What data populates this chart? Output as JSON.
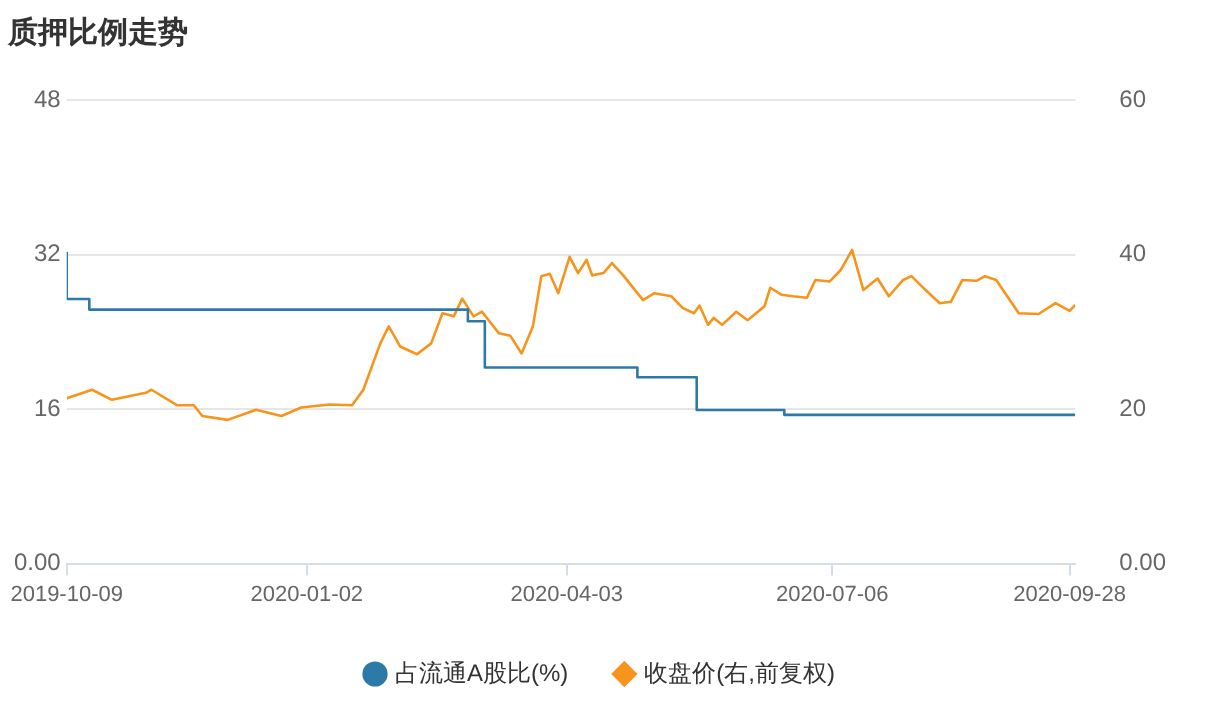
{
  "chart_data": {
    "type": "line",
    "title": "质押比例走势",
    "xlim": [
      "2019-10-09",
      "2020-09-30"
    ],
    "xticks": [
      "2019-10-09",
      "2020-01-02",
      "2020-04-03",
      "2020-07-06",
      "2020-09-28"
    ],
    "ylim": [
      0,
      48
    ],
    "yticks": [
      {
        "value": 0,
        "label": "0.00"
      },
      16,
      32,
      48
    ],
    "y2lim": [
      0,
      60
    ],
    "y2ticks": [
      {
        "value": 0,
        "label": "0.00"
      },
      20,
      40,
      60
    ],
    "grid": "y",
    "legend": "bottom",
    "line_style": "solid",
    "series": [
      {
        "name": "占流通A股比(%)",
        "color": "#2d79a8",
        "type": "step",
        "x": [
          "2019-10-09",
          "2019-10-17",
          "2020-02-28",
          "2020-03-05",
          "2020-04-28",
          "2020-05-19",
          "2020-06-19",
          "2020-08-19",
          "2020-09-30"
        ],
        "values": [
          32.3,
          27.4,
          26.3,
          25.1,
          20.3,
          19.3,
          15.9,
          15.4,
          15.4
        ]
      },
      {
        "name": "收盘价(右,前复权)",
        "color": "#f7941d",
        "type": "line",
        "axis": "y2",
        "x": [
          "2019-10-09",
          "2019-10-18",
          "2019-10-25",
          "2019-11-06",
          "2019-11-08",
          "2019-11-17",
          "2019-11-23",
          "2019-11-26",
          "2019-12-05",
          "2019-12-15",
          "2019-12-24",
          "2019-12-31",
          "2020-01-10",
          "2020-01-18",
          "2020-01-22",
          "2020-01-28",
          "2020-01-31",
          "2020-02-04",
          "2020-02-10",
          "2020-02-15",
          "2020-02-19",
          "2020-02-23",
          "2020-02-26",
          "2020-03-01",
          "2020-03-04",
          "2020-03-10",
          "2020-03-14",
          "2020-03-18",
          "2020-03-22",
          "2020-03-25",
          "2020-03-28",
          "2020-03-31",
          "2020-04-04",
          "2020-04-07",
          "2020-04-10",
          "2020-04-12",
          "2020-04-16",
          "2020-04-19",
          "2020-04-23",
          "2020-04-30",
          "2020-05-04",
          "2020-05-10",
          "2020-05-14",
          "2020-05-18",
          "2020-05-20",
          "2020-05-23",
          "2020-05-25",
          "2020-05-28",
          "2020-06-02",
          "2020-06-06",
          "2020-06-12",
          "2020-06-14",
          "2020-06-18",
          "2020-06-22",
          "2020-06-27",
          "2020-06-30",
          "2020-07-05",
          "2020-07-09",
          "2020-07-13",
          "2020-07-17",
          "2020-07-22",
          "2020-07-26",
          "2020-07-31",
          "2020-08-03",
          "2020-08-08",
          "2020-08-13",
          "2020-08-17",
          "2020-08-21",
          "2020-08-26",
          "2020-08-29",
          "2020-09-02",
          "2020-09-10",
          "2020-09-17",
          "2020-09-23",
          "2020-09-28",
          "2020-09-30"
        ],
        "values": [
          21.4,
          22.5,
          21.2,
          22.1,
          22.5,
          20.5,
          20.5,
          19.1,
          18.6,
          19.9,
          19.1,
          20.2,
          20.6,
          20.5,
          22.5,
          28.5,
          30.7,
          28.1,
          27.1,
          28.5,
          32.4,
          32.0,
          34.3,
          32.0,
          32.6,
          29.8,
          29.5,
          27.2,
          30.7,
          37.2,
          37.5,
          35.0,
          39.7,
          37.6,
          39.3,
          37.3,
          37.6,
          38.9,
          37.3,
          34.1,
          35.0,
          34.6,
          33.1,
          32.4,
          33.4,
          30.9,
          31.8,
          30.9,
          32.6,
          31.5,
          33.3,
          35.7,
          34.8,
          34.6,
          34.4,
          36.7,
          36.5,
          38.0,
          40.6,
          35.4,
          36.9,
          34.6,
          36.7,
          37.2,
          35.4,
          33.7,
          33.9,
          36.7,
          36.6,
          37.2,
          36.7,
          32.4,
          32.3,
          33.7,
          32.7,
          33.5
        ]
      }
    ]
  }
}
